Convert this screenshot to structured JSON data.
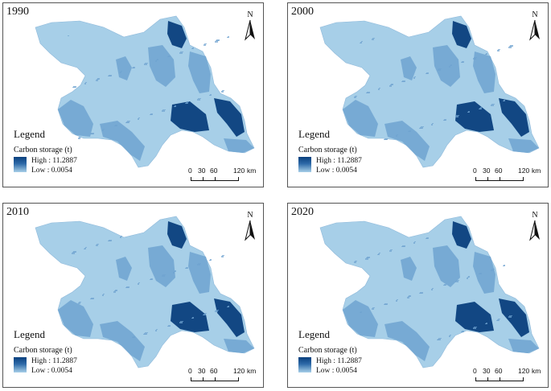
{
  "panels": [
    {
      "year": "1990"
    },
    {
      "year": "2000"
    },
    {
      "year": "2010"
    },
    {
      "year": "2020"
    }
  ],
  "north_label": "N",
  "legend": {
    "title": "Legend",
    "subtitle": "Carbon storage (t)",
    "high": "High : 11.2887",
    "low": "Low : 0.0054"
  },
  "scale": {
    "ticks": [
      "0",
      "30",
      "60",
      "120"
    ],
    "unit": "km"
  },
  "colors": {
    "low": "#a7cfe8",
    "mid": "#6fa3d0",
    "high": "#0a3f7d",
    "border": "#555555"
  }
}
